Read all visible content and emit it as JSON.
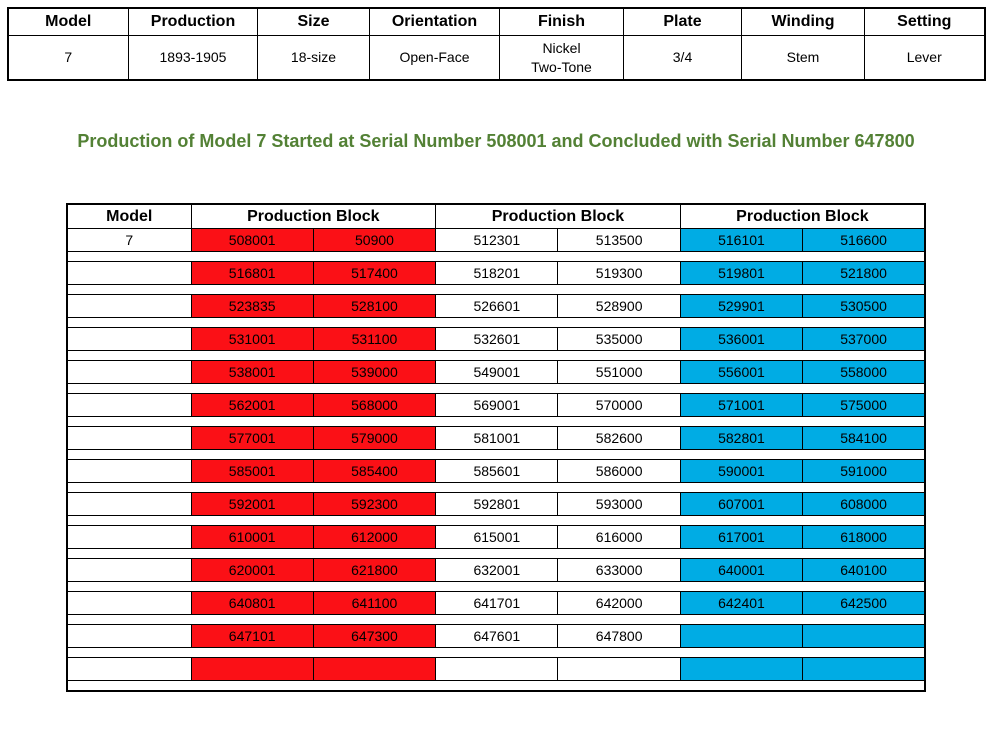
{
  "spec_table": {
    "headers": [
      "Model",
      "Production",
      "Size",
      "Orientation",
      "Finish",
      "Plate",
      "Winding",
      "Setting"
    ],
    "values": [
      "7",
      "1893-1905",
      "18-size",
      "Open-Face",
      "Nickel\nTwo-Tone",
      "3/4",
      "Stem",
      "Lever"
    ]
  },
  "heading": {
    "text": "Production of Model 7 Started at Serial Number 508001 and Concluded with Serial Number 647800",
    "color": "#538135"
  },
  "serial_table": {
    "headers": {
      "model": "Model",
      "block": "Production Block"
    },
    "model_column": [
      "7",
      "",
      "",
      "",
      "",
      "",
      "",
      "",
      "",
      "",
      "",
      "",
      "",
      ""
    ],
    "block_colors": {
      "first": "#FB1016",
      "second": "#FFFFFF",
      "third": "#00ACE4"
    },
    "rows": [
      [
        "508001",
        "50900",
        "512301",
        "513500",
        "516101",
        "516600"
      ],
      [
        "516801",
        "517400",
        "518201",
        "519300",
        "519801",
        "521800"
      ],
      [
        "523835",
        "528100",
        "526601",
        "528900",
        "529901",
        "530500"
      ],
      [
        "531001",
        "531100",
        "532601",
        "535000",
        "536001",
        "537000"
      ],
      [
        "538001",
        "539000",
        "549001",
        "551000",
        "556001",
        "558000"
      ],
      [
        "562001",
        "568000",
        "569001",
        "570000",
        "571001",
        "575000"
      ],
      [
        "577001",
        "579000",
        "581001",
        "582600",
        "582801",
        "584100"
      ],
      [
        "585001",
        "585400",
        "585601",
        "586000",
        "590001",
        "591000"
      ],
      [
        "592001",
        "592300",
        "592801",
        "593000",
        "607001",
        "608000"
      ],
      [
        "610001",
        "612000",
        "615001",
        "616000",
        "617001",
        "618000"
      ],
      [
        "620001",
        "621800",
        "632001",
        "633000",
        "640001",
        "640100"
      ],
      [
        "640801",
        "641100",
        "641701",
        "642000",
        "642401",
        "642500"
      ],
      [
        "647101",
        "647300",
        "647601",
        "647800",
        "",
        ""
      ],
      [
        "",
        "",
        "",
        "",
        "",
        ""
      ]
    ]
  }
}
